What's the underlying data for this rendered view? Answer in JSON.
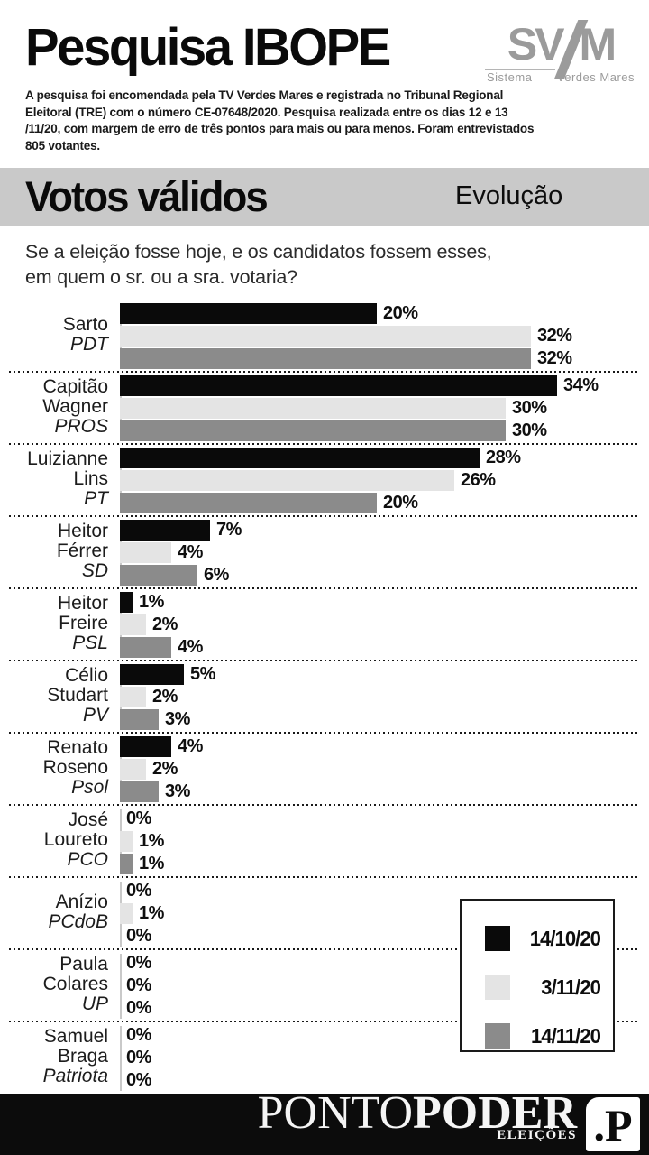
{
  "header": {
    "title": "Pesquisa IBOPE",
    "logo": {
      "letters_left": "SV",
      "letters_right": "M",
      "caption_left": "Sistema",
      "caption_right": "Verdes Mares"
    },
    "disclaimer": "A pesquisa foi encomendada pela TV Verdes Mares e registrada no Tribunal Regional Eleitoral (TRE) com o número CE-07648/2020. Pesquisa realizada entre os dias 12 e 13 /11/20, com margem de erro de três pontos para mais ou para menos. Foram entrevistados 805 votantes."
  },
  "section": {
    "title": "Votos válidos",
    "subtitle": "Evolução"
  },
  "question": "Se a eleição fosse hoje, e os candidatos fossem esses, em quem o sr. ou a sra. votaria?",
  "legend": {
    "items": [
      {
        "label": "14/10/20",
        "color": "#0a0a0a"
      },
      {
        "label": "3/11/20",
        "color": "#e4e4e4"
      },
      {
        "label": "14/11/20",
        "color": "#8b8b8b"
      }
    ]
  },
  "chart_data": {
    "type": "bar",
    "orientation": "horizontal",
    "title": "Votos válidos — Evolução",
    "unit": "%",
    "xlim": [
      0,
      34
    ],
    "grid": false,
    "legend_position": "bottom-right",
    "series_labels": [
      "14/10/20",
      "3/11/20",
      "14/11/20"
    ],
    "series_colors": [
      "#0a0a0a",
      "#e4e4e4",
      "#8b8b8b"
    ],
    "groups": [
      {
        "name_lines": [
          "Sarto"
        ],
        "party": "PDT",
        "values": [
          20,
          32,
          32
        ]
      },
      {
        "name_lines": [
          "Capitão",
          "Wagner"
        ],
        "party": "PROS",
        "values": [
          34,
          30,
          30
        ]
      },
      {
        "name_lines": [
          "Luizianne",
          "Lins"
        ],
        "party": "PT",
        "values": [
          28,
          26,
          20
        ]
      },
      {
        "name_lines": [
          "Heitor",
          "Férrer"
        ],
        "party": "SD",
        "values": [
          7,
          4,
          6
        ]
      },
      {
        "name_lines": [
          "Heitor",
          "Freire"
        ],
        "party": "PSL",
        "values": [
          1,
          2,
          4
        ]
      },
      {
        "name_lines": [
          "Célio",
          "Studart"
        ],
        "party": "PV",
        "values": [
          5,
          2,
          3
        ]
      },
      {
        "name_lines": [
          "Renato",
          "Roseno"
        ],
        "party": "Psol",
        "values": [
          4,
          2,
          3
        ]
      },
      {
        "name_lines": [
          "José",
          "Loureto"
        ],
        "party": "PCO",
        "values": [
          0,
          1,
          1
        ]
      },
      {
        "name_lines": [
          "Anízio"
        ],
        "party": "PCdoB",
        "values": [
          0,
          1,
          0
        ]
      },
      {
        "name_lines": [
          "Paula",
          "Colares"
        ],
        "party": "UP",
        "values": [
          0,
          0,
          0
        ]
      },
      {
        "name_lines": [
          "Samuel",
          "Braga"
        ],
        "party": "Patriota",
        "values": [
          0,
          0,
          0
        ]
      }
    ]
  },
  "footer": {
    "brand_light": "PONTO",
    "brand_bold": "PODER",
    "sub": "ELEIÇÕES",
    "logo_text": ".P"
  }
}
